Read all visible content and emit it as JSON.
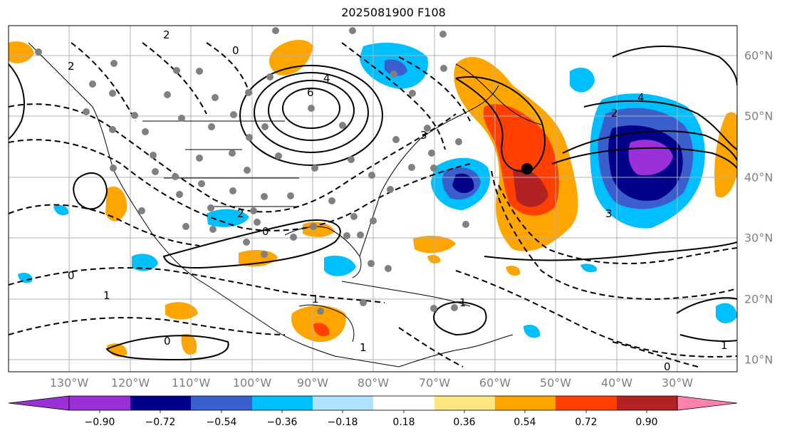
{
  "title": "2025081900 F108",
  "lon_labels": [
    "130°W",
    "120°W",
    "110°W",
    "100°W",
    "90°W",
    "80°W",
    "70°W",
    "60°W",
    "50°W",
    "40°W",
    "30°W"
  ],
  "lat_labels": [
    "60°N",
    "50°N",
    "40°N",
    "30°N",
    "20°N",
    "10°N"
  ],
  "colorbar": {
    "ticks": [
      "−0.90",
      "−0.72",
      "−0.54",
      "−0.36",
      "−0.18",
      "0.18",
      "0.36",
      "0.54",
      "0.72",
      "0.90"
    ],
    "colors": [
      "#9b30d9",
      "#00008b",
      "#3a5fcd",
      "#00bfff",
      "#b0e2ff",
      "#ffffff",
      "#ffe680",
      "#ffa500",
      "#ff4000",
      "#b22222",
      "#ff82ab"
    ]
  },
  "contour_labels": [
    "6",
    "4",
    "2",
    "0",
    "2",
    "4",
    "0",
    "1",
    "1",
    "0",
    "2",
    "1",
    "0",
    "3",
    "1",
    "0",
    "1",
    "2",
    "3"
  ]
}
